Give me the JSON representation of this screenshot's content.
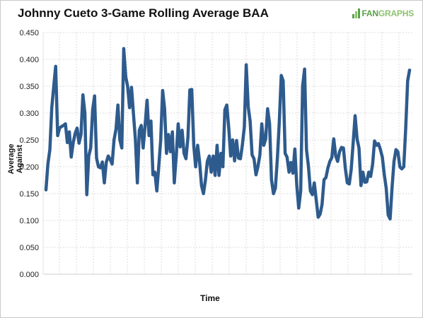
{
  "chart_data": {
    "type": "line",
    "title": "Johnny Cueto 3-Game Rolling Average BAA",
    "xlabel": "Time",
    "ylabel": "Average Against",
    "ylim": [
      0,
      0.45
    ],
    "y_ticks": [
      "0.000",
      "0.050",
      "0.100",
      "0.150",
      "0.200",
      "0.250",
      "0.300",
      "0.350",
      "0.400",
      "0.450"
    ],
    "grid": "on",
    "legend": "none",
    "series": [
      {
        "color": "#2e5b8d",
        "values": [
          0.157,
          0.205,
          0.232,
          0.31,
          0.35,
          0.387,
          0.258,
          0.272,
          0.275,
          0.277,
          0.28,
          0.245,
          0.265,
          0.218,
          0.245,
          0.262,
          0.272,
          0.244,
          0.26,
          0.334,
          0.3,
          0.148,
          0.22,
          0.235,
          0.306,
          0.332,
          0.216,
          0.2,
          0.198,
          0.209,
          0.17,
          0.208,
          0.22,
          0.214,
          0.205,
          0.25,
          0.27,
          0.315,
          0.25,
          0.235,
          0.42,
          0.368,
          0.35,
          0.31,
          0.348,
          0.298,
          0.251,
          0.17,
          0.268,
          0.277,
          0.235,
          0.278,
          0.324,
          0.258,
          0.285,
          0.185,
          0.19,
          0.155,
          0.2,
          0.25,
          0.342,
          0.308,
          0.225,
          0.26,
          0.228,
          0.265,
          0.17,
          0.222,
          0.28,
          0.237,
          0.268,
          0.225,
          0.215,
          0.255,
          0.343,
          0.344,
          0.24,
          0.2,
          0.24,
          0.21,
          0.165,
          0.15,
          0.175,
          0.21,
          0.22,
          0.19,
          0.22,
          0.184,
          0.24,
          0.184,
          0.225,
          0.2,
          0.306,
          0.315,
          0.272,
          0.22,
          0.25,
          0.211,
          0.249,
          0.216,
          0.215,
          0.24,
          0.274,
          0.39,
          0.312,
          0.285,
          0.222,
          0.215,
          0.185,
          0.2,
          0.222,
          0.28,
          0.24,
          0.252,
          0.308,
          0.28,
          0.176,
          0.15,
          0.16,
          0.215,
          0.282,
          0.37,
          0.36,
          0.225,
          0.218,
          0.19,
          0.208,
          0.188,
          0.233,
          0.165,
          0.123,
          0.155,
          0.35,
          0.382,
          0.232,
          0.2,
          0.155,
          0.148,
          0.17,
          0.138,
          0.106,
          0.112,
          0.13,
          0.176,
          0.18,
          0.198,
          0.21,
          0.217,
          0.252,
          0.22,
          0.21,
          0.228,
          0.236,
          0.235,
          0.196,
          0.17,
          0.168,
          0.195,
          0.245,
          0.295,
          0.252,
          0.235,
          0.165,
          0.19,
          0.171,
          0.172,
          0.19,
          0.182,
          0.205,
          0.248,
          0.24,
          0.243,
          0.232,
          0.218,
          0.185,
          0.16,
          0.11,
          0.103,
          0.162,
          0.21,
          0.232,
          0.228,
          0.2,
          0.196,
          0.2,
          0.27,
          0.36,
          0.38
        ]
      }
    ]
  },
  "header": {
    "title": "Johnny Cueto 3-Game Rolling Average BAA",
    "brand_prefix": "FAN",
    "brand_suffix": "GRAPHS"
  },
  "axes": {
    "xlabel": "Time",
    "ylabel": "Average Against"
  },
  "colors": {
    "line": "#2e5b8d",
    "grid": "#dddddd",
    "brand_dark": "#59a04a",
    "brand_light": "#8cc36d"
  }
}
